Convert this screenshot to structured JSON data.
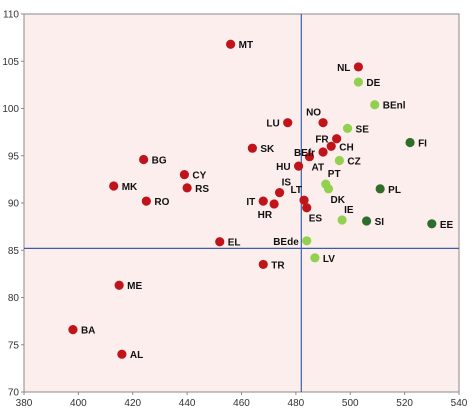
{
  "chart_data": {
    "type": "scatter",
    "title": "",
    "xlabel": "",
    "ylabel": "",
    "xlim": [
      380,
      540
    ],
    "ylim": [
      70,
      110
    ],
    "x_ticks": [
      380,
      400,
      420,
      440,
      460,
      480,
      500,
      520,
      540
    ],
    "y_ticks": [
      70,
      75,
      80,
      85,
      90,
      95,
      100,
      105,
      110
    ],
    "reference_lines": {
      "x": 482,
      "y": 85.2
    },
    "grid": false,
    "legend": "none",
    "colors": {
      "plot_background": "#fdeeee",
      "reference_line": "#3a5fa8",
      "red": "#c0141b",
      "light_green": "#92d050",
      "dark_green": "#2f6e2a"
    },
    "points": [
      {
        "label": "MT",
        "x": 456,
        "y": 106.8,
        "color": "red",
        "label_pos": "right"
      },
      {
        "label": "NL",
        "x": 503,
        "y": 104.4,
        "color": "red",
        "label_pos": "left"
      },
      {
        "label": "DE",
        "x": 503,
        "y": 102.8,
        "color": "light_green",
        "label_pos": "right"
      },
      {
        "label": "BEnl",
        "x": 509,
        "y": 100.4,
        "color": "light_green",
        "label_pos": "right"
      },
      {
        "label": "LU",
        "x": 477,
        "y": 98.5,
        "color": "red",
        "label_pos": "left"
      },
      {
        "label": "NO",
        "x": 490,
        "y": 98.5,
        "color": "red",
        "label_pos": "above-left"
      },
      {
        "label": "SE",
        "x": 499,
        "y": 97.9,
        "color": "light_green",
        "label_pos": "right"
      },
      {
        "label": "FI",
        "x": 522,
        "y": 96.4,
        "color": "dark_green",
        "label_pos": "right"
      },
      {
        "label": "FR",
        "x": 495,
        "y": 96.8,
        "color": "red",
        "label_pos": "left"
      },
      {
        "label": "CH",
        "x": 493,
        "y": 96.0,
        "color": "red",
        "label_pos": "right"
      },
      {
        "label": "SK",
        "x": 464,
        "y": 95.8,
        "color": "red",
        "label_pos": "right"
      },
      {
        "label": "BEfr",
        "x": 490,
        "y": 95.4,
        "color": "red",
        "label_pos": "left"
      },
      {
        "label": "AT",
        "x": 485,
        "y": 94.9,
        "color": "red",
        "label_pos": "below-right"
      },
      {
        "label": "CZ",
        "x": 496,
        "y": 94.5,
        "color": "light_green",
        "label_pos": "right"
      },
      {
        "label": "BG",
        "x": 424,
        "y": 94.6,
        "color": "red",
        "label_pos": "right"
      },
      {
        "label": "HU",
        "x": 481,
        "y": 93.9,
        "color": "red",
        "label_pos": "left"
      },
      {
        "label": "CY",
        "x": 439,
        "y": 93.0,
        "color": "red",
        "label_pos": "right"
      },
      {
        "label": "PT",
        "x": 491,
        "y": 92.0,
        "color": "light_green",
        "label_pos": "above-right"
      },
      {
        "label": "MK",
        "x": 413,
        "y": 91.8,
        "color": "red",
        "label_pos": "right"
      },
      {
        "label": "RS",
        "x": 440,
        "y": 91.6,
        "color": "red",
        "label_pos": "right"
      },
      {
        "label": "DK",
        "x": 492,
        "y": 91.5,
        "color": "light_green",
        "label_pos": "below-right"
      },
      {
        "label": "PL",
        "x": 511,
        "y": 91.5,
        "color": "dark_green",
        "label_pos": "right"
      },
      {
        "label": "IS",
        "x": 474,
        "y": 91.1,
        "color": "red",
        "label_pos": "above-right"
      },
      {
        "label": "IT",
        "x": 468,
        "y": 90.2,
        "color": "red",
        "label_pos": "left"
      },
      {
        "label": "LT",
        "x": 483,
        "y": 90.3,
        "color": "red",
        "label_pos": "above-left"
      },
      {
        "label": "RO",
        "x": 425,
        "y": 90.2,
        "color": "red",
        "label_pos": "right"
      },
      {
        "label": "HR",
        "x": 472,
        "y": 89.9,
        "color": "red",
        "label_pos": "below-left"
      },
      {
        "label": "ES",
        "x": 484,
        "y": 89.5,
        "color": "red",
        "label_pos": "below-right"
      },
      {
        "label": "IE",
        "x": 497,
        "y": 88.2,
        "color": "light_green",
        "label_pos": "above-right"
      },
      {
        "label": "SI",
        "x": 506,
        "y": 88.1,
        "color": "dark_green",
        "label_pos": "right"
      },
      {
        "label": "EE",
        "x": 530,
        "y": 87.8,
        "color": "dark_green",
        "label_pos": "right"
      },
      {
        "label": "EL",
        "x": 452,
        "y": 85.9,
        "color": "red",
        "label_pos": "right"
      },
      {
        "label": "BEde",
        "x": 484,
        "y": 86.0,
        "color": "light_green",
        "label_pos": "left"
      },
      {
        "label": "LV",
        "x": 487,
        "y": 84.2,
        "color": "light_green",
        "label_pos": "right"
      },
      {
        "label": "TR",
        "x": 468,
        "y": 83.5,
        "color": "red",
        "label_pos": "right"
      },
      {
        "label": "ME",
        "x": 415,
        "y": 81.3,
        "color": "red",
        "label_pos": "right"
      },
      {
        "label": "BA",
        "x": 398,
        "y": 76.6,
        "color": "red",
        "label_pos": "right"
      },
      {
        "label": "AL",
        "x": 416,
        "y": 74.0,
        "color": "red",
        "label_pos": "right"
      }
    ]
  }
}
